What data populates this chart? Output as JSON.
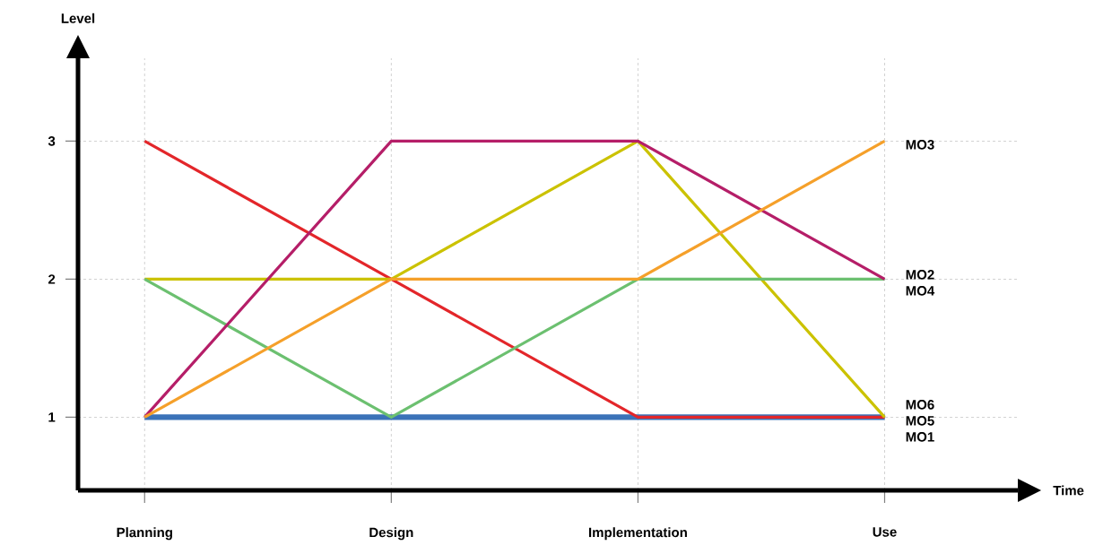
{
  "chart_data": {
    "type": "line",
    "xlabel": "Time",
    "ylabel": "Level",
    "categories": [
      "Planning",
      "Design",
      "Implementation",
      "Use"
    ],
    "series": [
      {
        "name": "MO3",
        "color": "#f5a02a",
        "values": [
          1,
          2,
          2,
          3
        ]
      },
      {
        "name": "MO2",
        "color": "#b51e68",
        "values": [
          1,
          3,
          3,
          2
        ]
      },
      {
        "name": "MO4",
        "color": "#6cc070",
        "values": [
          2,
          1,
          2,
          2
        ]
      },
      {
        "name": "MO6",
        "color": "#cbc200",
        "values": [
          2,
          2,
          3,
          1
        ]
      },
      {
        "name": "MO5",
        "color": "#e3262a",
        "values": [
          3,
          2,
          1,
          1
        ]
      },
      {
        "name": "MO1",
        "color": "#3b72b8",
        "values": [
          1,
          1,
          1,
          1
        ]
      }
    ],
    "ylim": [
      0.47,
      3.6
    ],
    "yticks": [
      1,
      2,
      3
    ],
    "grid": true,
    "marker": "none"
  }
}
